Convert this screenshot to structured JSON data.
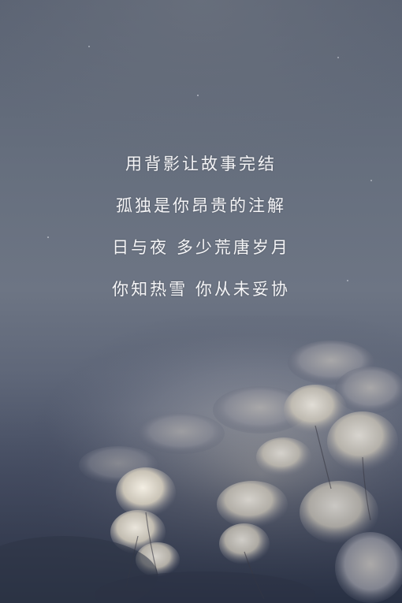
{
  "poem": {
    "lines": [
      "用背影让故事完结",
      "孤独是你昂贵的注解",
      "日与夜  多少荒唐岁月",
      "你知热雪  你从未妥协"
    ]
  },
  "colors": {
    "sky": "#666f7e",
    "ground_shadow": "#2e3548",
    "snow_highlight": "#efe9dc",
    "text": "#f4f4f6"
  }
}
